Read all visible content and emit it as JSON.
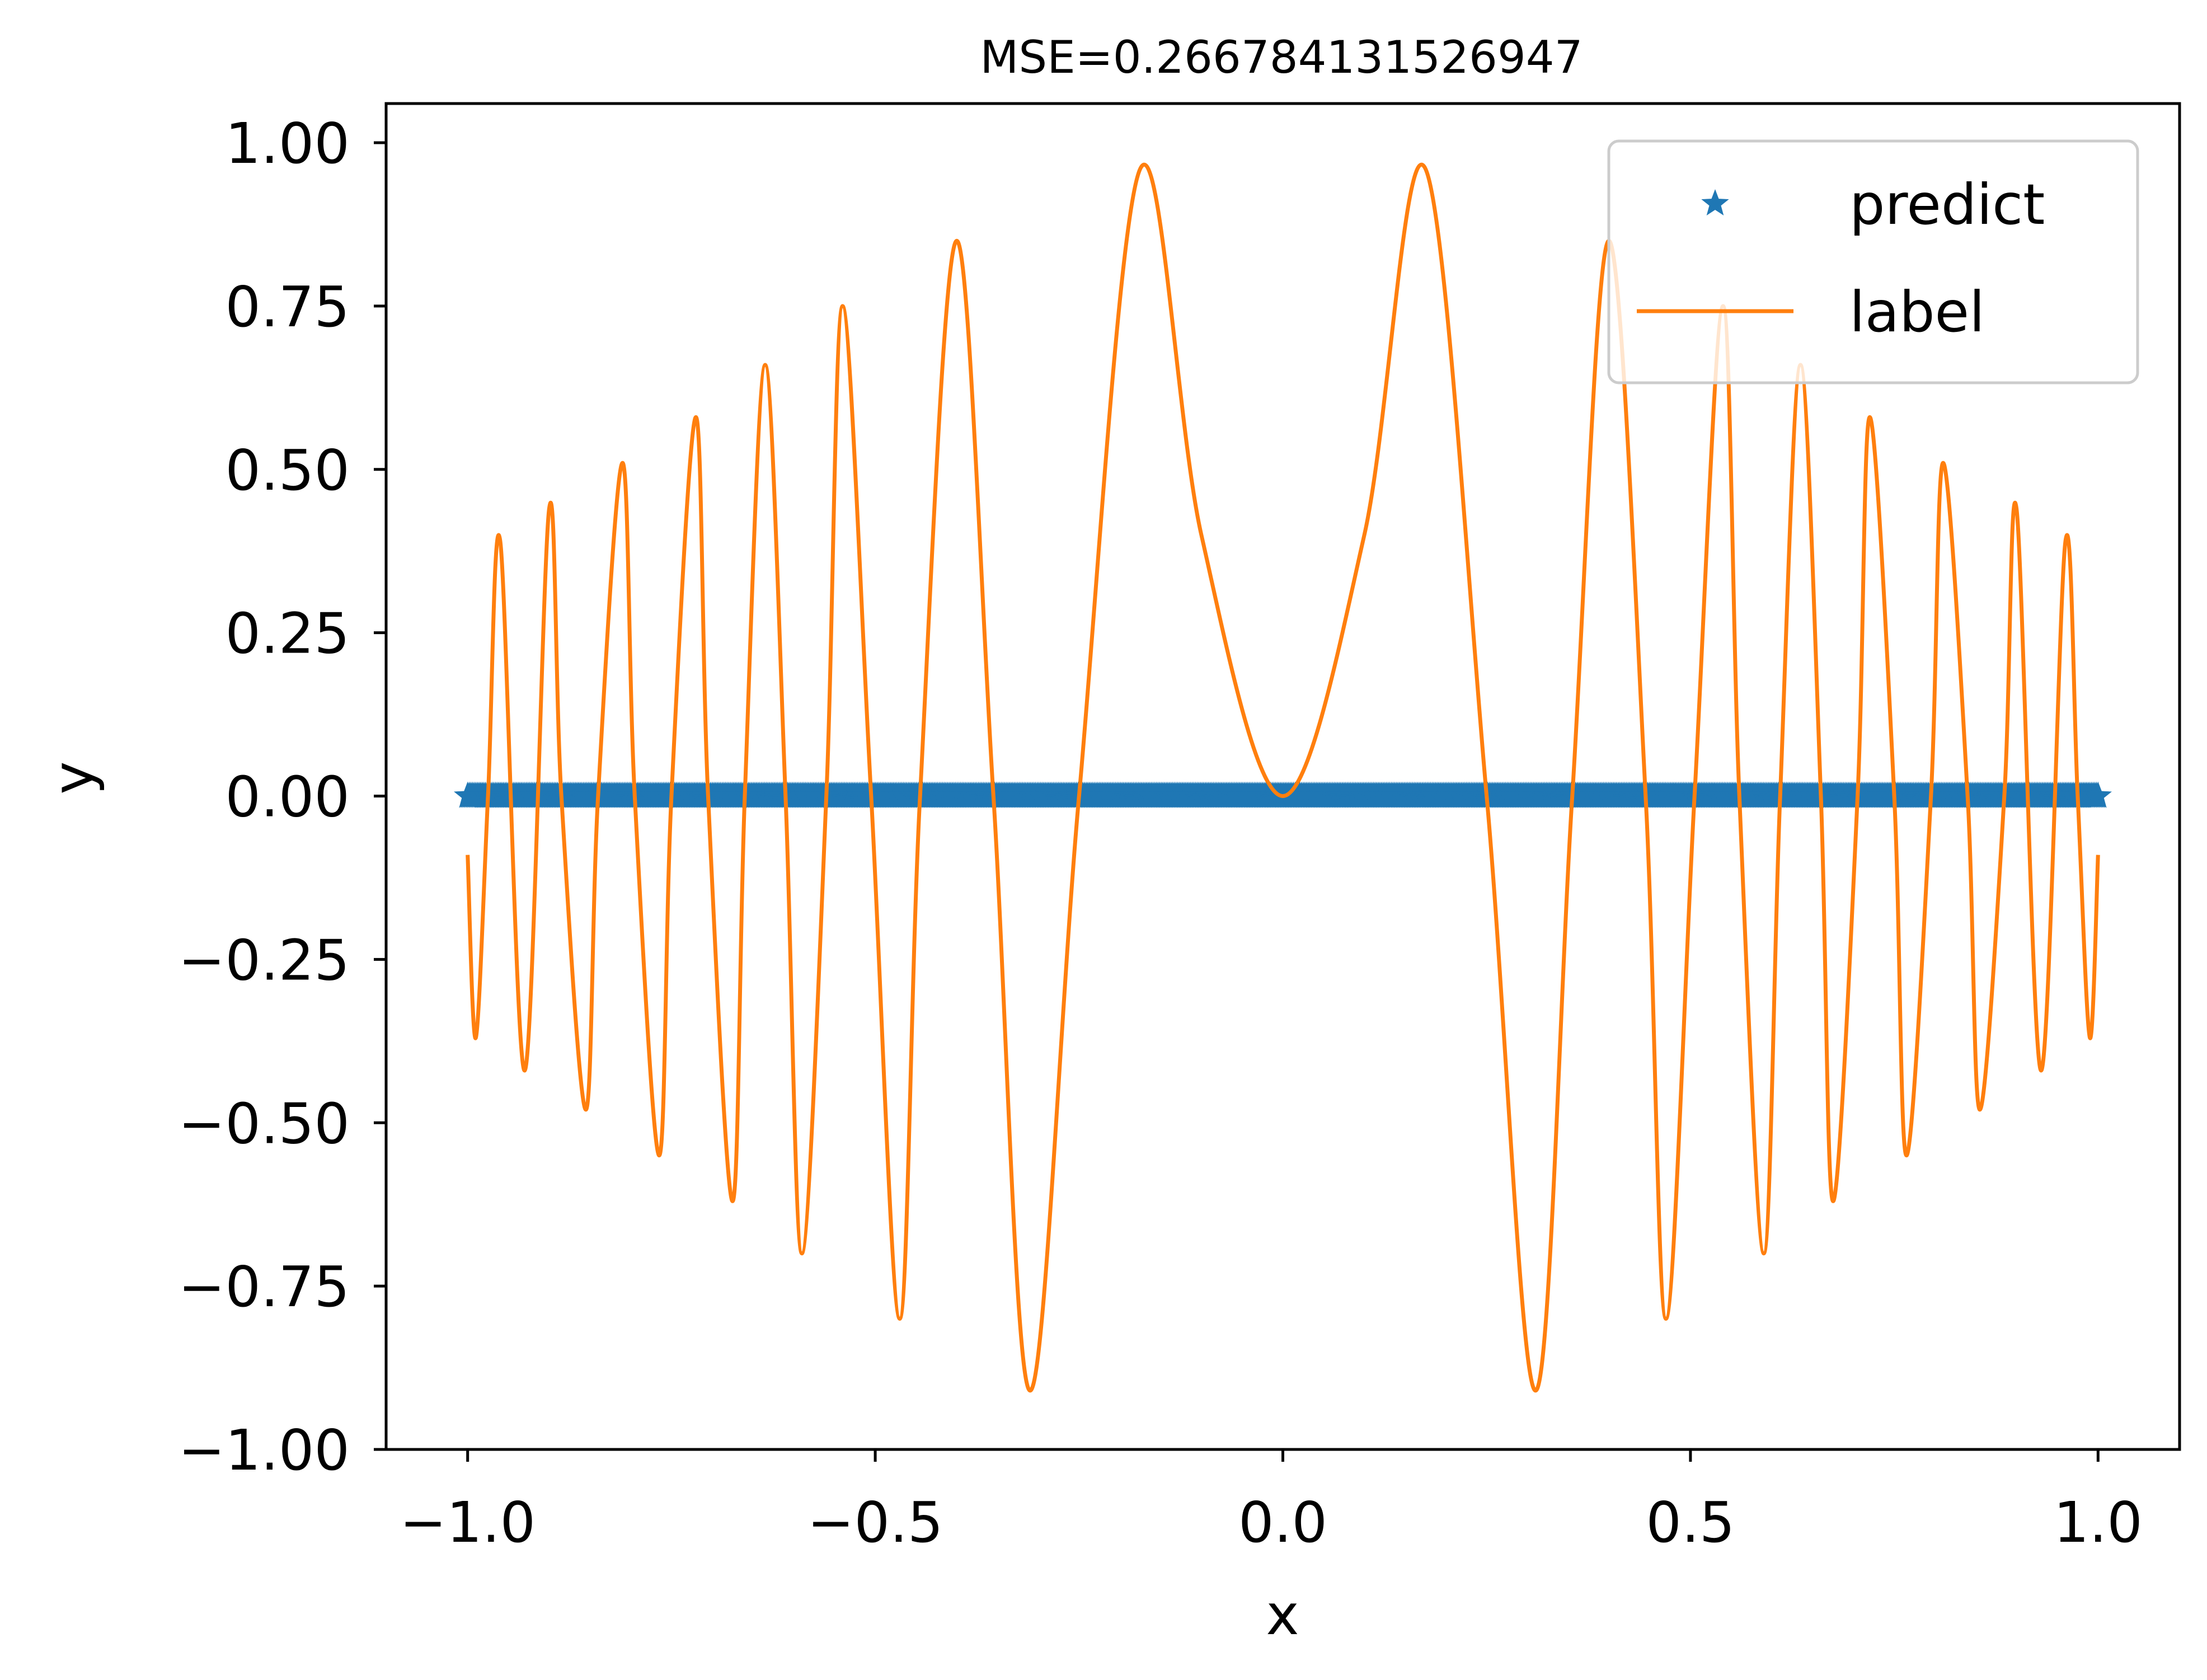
{
  "chart_data": {
    "type": "line",
    "title": "MSE=0.266784131526947",
    "xlabel": "x",
    "ylabel": "y",
    "xlim": [
      -1.1,
      1.1
    ],
    "ylim": [
      -1.0,
      1.06
    ],
    "xticks": [
      -1.0,
      -0.5,
      0.0,
      0.5,
      1.0
    ],
    "xtick_labels": [
      "−1.0",
      "−0.5",
      "0.0",
      "0.5",
      "1.0"
    ],
    "yticks": [
      1.0,
      0.75,
      0.5,
      0.25,
      0.0,
      -0.25,
      -0.5,
      -0.75,
      -1.0
    ],
    "ytick_labels": [
      "1.00",
      "0.75",
      "0.50",
      "0.25",
      "0.00",
      "−0.25",
      "−0.50",
      "−0.75",
      "−1.00"
    ],
    "grid": false,
    "legend_position": "upper right",
    "series": [
      {
        "name": "predict",
        "kind": "markers",
        "marker": "star",
        "color": "#1f77b4",
        "x_range": [
          -1.0,
          1.0
        ],
        "y_constant": 0.0,
        "count": 1000
      },
      {
        "name": "label",
        "kind": "line",
        "color": "#ff7f0e",
        "x": [
          -1.0,
          -0.99,
          -0.975,
          -0.96,
          -0.93,
          -0.9,
          -0.885,
          -0.855,
          -0.84,
          -0.81,
          -0.795,
          -0.765,
          -0.75,
          -0.72,
          -0.705,
          -0.675,
          -0.66,
          -0.635,
          -0.61,
          -0.59,
          -0.56,
          -0.54,
          -0.505,
          -0.47,
          -0.445,
          -0.4,
          -0.355,
          -0.31,
          -0.25,
          -0.175,
          -0.1,
          0.0,
          0.1,
          0.175,
          0.25,
          0.31,
          0.355,
          0.4,
          0.445,
          0.47,
          0.505,
          0.54,
          0.56,
          0.59,
          0.61,
          0.635,
          0.66,
          0.675,
          0.705,
          0.72,
          0.75,
          0.765,
          0.795,
          0.81,
          0.84,
          0.855,
          0.885,
          0.9,
          0.93,
          0.96,
          0.975,
          0.99,
          1.0
        ],
        "y": [
          -0.09,
          -0.37,
          0.0,
          0.39,
          -0.42,
          0.44,
          0.0,
          -0.48,
          0.0,
          0.51,
          0.0,
          -0.55,
          0.0,
          0.58,
          0.0,
          -0.62,
          0.0,
          0.66,
          0.0,
          -0.7,
          0.0,
          0.75,
          0.0,
          -0.8,
          0.0,
          0.85,
          0.0,
          -0.91,
          0.0,
          0.96,
          0.4,
          0.0,
          0.4,
          0.96,
          0.0,
          -0.91,
          0.0,
          0.85,
          0.0,
          -0.8,
          0.0,
          0.75,
          0.0,
          -0.7,
          0.0,
          0.66,
          0.0,
          -0.62,
          0.0,
          0.58,
          0.0,
          -0.55,
          0.0,
          0.51,
          0.0,
          -0.48,
          0.0,
          0.44,
          -0.42,
          0.39,
          0.0,
          -0.37,
          -0.09
        ]
      }
    ]
  }
}
